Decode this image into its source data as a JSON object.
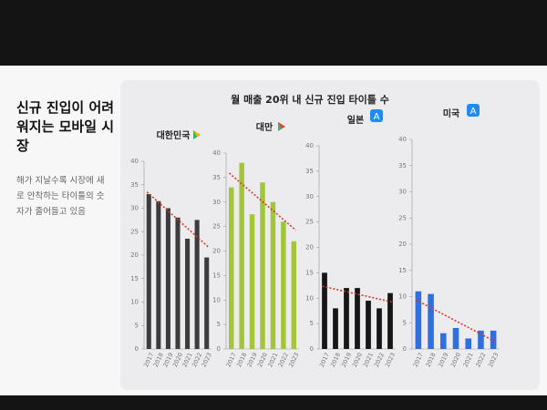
{
  "slide": {
    "heading": "신규 진입이 어려워지는 모바일 시장",
    "description": "해가 지날수록 시장에 새로 안착하는 타이틀의 숫자가 줄어들고 있음",
    "chart_title": "월 매출 20위 내 신규 진입 타이틀 수"
  },
  "chart_data": [
    {
      "type": "bar",
      "title": "대한민국",
      "categories": [
        "2017",
        "2018",
        "2019",
        "2020",
        "2021",
        "2022",
        "2023"
      ],
      "values": [
        33,
        31.5,
        30,
        28,
        23.5,
        27.5,
        19.5
      ],
      "color": "#3c3c3c",
      "ylim": [
        0,
        40
      ],
      "yticks": [
        0,
        5,
        10,
        15,
        20,
        25,
        30,
        35,
        40
      ]
    },
    {
      "type": "bar",
      "title": "대만",
      "categories": [
        "2017",
        "2018",
        "2019",
        "2020",
        "2021",
        "2022",
        "2023"
      ],
      "values": [
        33,
        38,
        27.5,
        34,
        30,
        26,
        22
      ],
      "color": "#a2c53c",
      "ylim": [
        0,
        40
      ],
      "yticks": [
        0,
        5,
        10,
        15,
        20,
        25,
        30,
        35,
        40
      ]
    },
    {
      "type": "bar",
      "title": "일본",
      "categories": [
        "2017",
        "2018",
        "2019",
        "2020",
        "2021",
        "2022",
        "2023"
      ],
      "values": [
        15,
        8,
        12,
        12,
        9.5,
        8,
        11
      ],
      "color": "#161616",
      "ylim": [
        0,
        40
      ],
      "yticks": [
        0,
        5,
        10,
        15,
        20,
        25,
        30,
        35,
        40
      ]
    },
    {
      "type": "bar",
      "title": "미국",
      "categories": [
        "2017",
        "2018",
        "2019",
        "2020",
        "2021",
        "2022",
        "2023"
      ],
      "values": [
        11,
        10.5,
        3,
        4,
        2,
        3.5,
        3.5
      ],
      "color": "#2f6fe0",
      "ylim": [
        0,
        40
      ],
      "yticks": [
        0,
        5,
        10,
        15,
        20,
        25,
        30,
        35,
        40
      ]
    }
  ]
}
